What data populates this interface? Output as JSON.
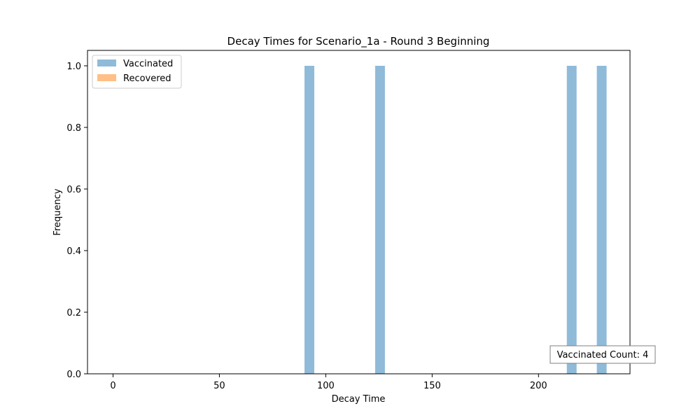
{
  "chart_data": {
    "type": "bar",
    "title": "Decay Times for Scenario_1a - Round 3 Beginning",
    "xlabel": "Decay Time",
    "ylabel": "Frequency",
    "xlim": [
      -12,
      243
    ],
    "ylim": [
      0,
      1.05
    ],
    "x_ticks": [
      0,
      50,
      100,
      150,
      200
    ],
    "y_ticks": [
      0.0,
      0.2,
      0.4,
      0.6,
      0.8,
      1.0
    ],
    "y_tick_labels": [
      "0.0",
      "0.2",
      "0.4",
      "0.6",
      "0.8",
      "1.0"
    ],
    "grid": false,
    "legend_position": "top-left",
    "bin_width": 4.6,
    "series": [
      {
        "name": "Vaccinated",
        "color": "#1f77b4",
        "opacity": 0.5,
        "bars": [
          {
            "x": 92.3,
            "value": 1
          },
          {
            "x": 125.5,
            "value": 1
          },
          {
            "x": 215.6,
            "value": 1
          },
          {
            "x": 229.7,
            "value": 1
          }
        ]
      },
      {
        "name": "Recovered",
        "color": "#ff7f0e",
        "opacity": 0.5,
        "bars": []
      }
    ],
    "annotation": {
      "text": "Vaccinated Count: 4",
      "position": "bottom-right"
    }
  }
}
